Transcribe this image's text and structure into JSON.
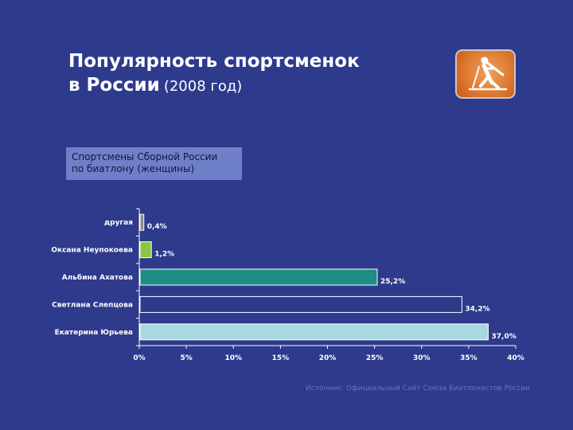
{
  "title": {
    "line1": "Популярность спортсменок",
    "line2": "в России",
    "year": "(2008 год)"
  },
  "subtitle": {
    "line1": "Спортсмены Сборной России",
    "line2": "по биатлону (женщины)"
  },
  "logo": {
    "icon": "biathlon-skier-icon"
  },
  "source": "Источник: Официальный Сайт Союза Биатлонистов России",
  "chart_data": {
    "type": "bar",
    "orientation": "horizontal",
    "categories": [
      "другая",
      "Оксана Неупокоева",
      "Альбина Ахатова",
      "Светлана Слепцова",
      "Екатерина Юрьева"
    ],
    "values": [
      0.4,
      1.2,
      25.2,
      34.2,
      37.0
    ],
    "labels": [
      "0,4%",
      "1,2%",
      "25,2%",
      "34,2%",
      "37,0%"
    ],
    "colors": [
      "#8a8a8a",
      "#8cc63f",
      "#1f8c86",
      "#2e3a8c",
      "#a8d8e0"
    ],
    "xlim": [
      0,
      40
    ],
    "xticks": [
      0,
      5,
      10,
      15,
      20,
      25,
      30,
      35,
      40
    ],
    "xtick_labels": [
      "0%",
      "5%",
      "10%",
      "15%",
      "20%",
      "25%",
      "30%",
      "35%",
      "40%"
    ],
    "grid": false,
    "legend": "none"
  }
}
